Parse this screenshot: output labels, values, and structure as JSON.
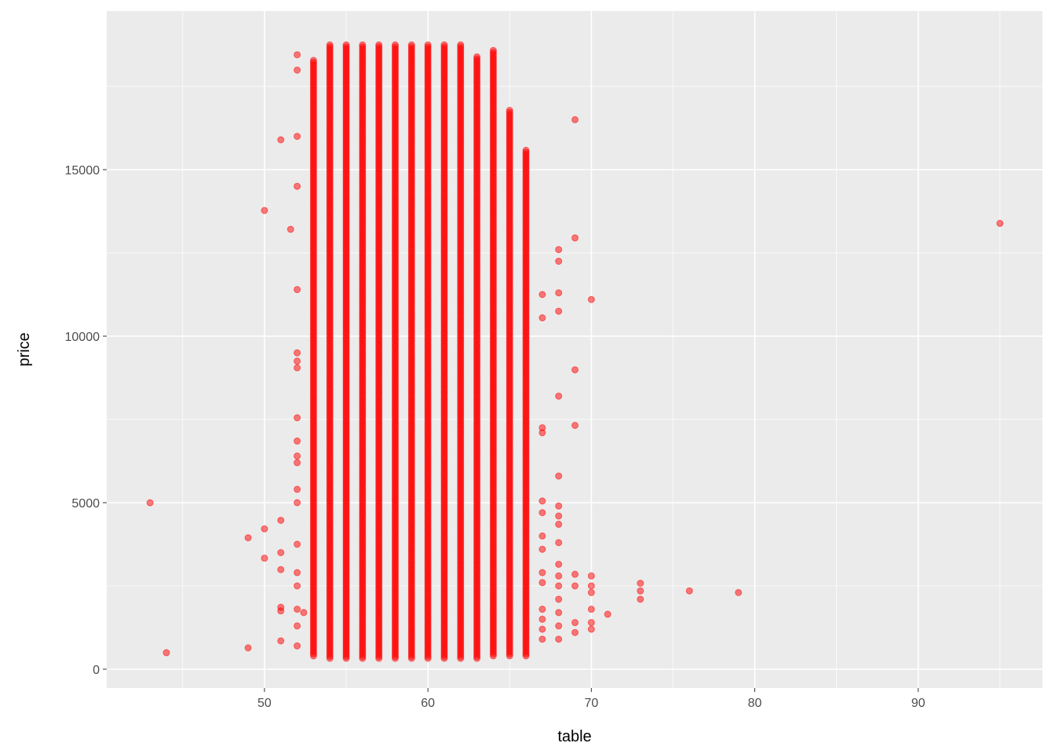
{
  "chart_data": {
    "type": "scatter",
    "title": "",
    "xlabel": "table",
    "ylabel": "price",
    "xlim": [
      40.35,
      97.6
    ],
    "ylim": [
      -566,
      19764
    ],
    "x_ticks": [
      50,
      60,
      70,
      80,
      90
    ],
    "x_tick_labels": [
      "50",
      "60",
      "70",
      "80",
      "90"
    ],
    "y_ticks": [
      0,
      5000,
      10000,
      15000
    ],
    "y_tick_labels": [
      "0",
      "5000",
      "10000",
      "15000"
    ],
    "grid": true,
    "background": "#EBEBEB",
    "point_color": "#FF0000",
    "point_alpha": 0.5,
    "dense_columns": [
      {
        "table": 53,
        "price_range": [
          400,
          18300
        ]
      },
      {
        "table": 54,
        "price_range": [
          326,
          18800
        ]
      },
      {
        "table": 55,
        "price_range": [
          326,
          18800
        ]
      },
      {
        "table": 56,
        "price_range": [
          326,
          18800
        ]
      },
      {
        "table": 57,
        "price_range": [
          326,
          18800
        ]
      },
      {
        "table": 58,
        "price_range": [
          326,
          18800
        ]
      },
      {
        "table": 59,
        "price_range": [
          326,
          18800
        ]
      },
      {
        "table": 60,
        "price_range": [
          326,
          18800
        ]
      },
      {
        "table": 61,
        "price_range": [
          326,
          18800
        ]
      },
      {
        "table": 62,
        "price_range": [
          326,
          18800
        ]
      },
      {
        "table": 63,
        "price_range": [
          326,
          18400
        ]
      },
      {
        "table": 64,
        "price_range": [
          400,
          18600
        ]
      },
      {
        "table": 65,
        "price_range": [
          400,
          16800
        ]
      },
      {
        "table": 66,
        "price_range": [
          400,
          15600
        ]
      }
    ],
    "points": [
      [
        43,
        4997
      ],
      [
        44,
        495
      ],
      [
        49,
        3945
      ],
      [
        49,
        640
      ],
      [
        50,
        13774
      ],
      [
        50,
        4214
      ],
      [
        50,
        3334
      ],
      [
        51,
        15896
      ],
      [
        51,
        4470
      ],
      [
        51,
        3500
      ],
      [
        51,
        2990
      ],
      [
        51,
        1860
      ],
      [
        51,
        1750
      ],
      [
        51,
        850
      ],
      [
        51.6,
        13208
      ],
      [
        52,
        18450
      ],
      [
        52,
        17990
      ],
      [
        52,
        16000
      ],
      [
        52,
        14500
      ],
      [
        52,
        11400
      ],
      [
        52,
        9500
      ],
      [
        52,
        9250
      ],
      [
        52,
        9050
      ],
      [
        52,
        7550
      ],
      [
        52,
        6850
      ],
      [
        52,
        6400
      ],
      [
        52,
        6200
      ],
      [
        52,
        5400
      ],
      [
        52,
        5000
      ],
      [
        52,
        3750
      ],
      [
        52,
        2900
      ],
      [
        52,
        2500
      ],
      [
        52,
        1800
      ],
      [
        52,
        1300
      ],
      [
        52,
        700
      ],
      [
        52.4,
        1700
      ],
      [
        67,
        11250
      ],
      [
        67,
        10550
      ],
      [
        67,
        7250
      ],
      [
        67,
        7100
      ],
      [
        67,
        5050
      ],
      [
        67,
        4700
      ],
      [
        67,
        4000
      ],
      [
        67,
        3600
      ],
      [
        67,
        2900
      ],
      [
        67,
        2600
      ],
      [
        67,
        1800
      ],
      [
        67,
        1500
      ],
      [
        67,
        1200
      ],
      [
        67,
        900
      ],
      [
        68,
        12600
      ],
      [
        68,
        12250
      ],
      [
        68,
        11300
      ],
      [
        68,
        10750
      ],
      [
        68,
        8200
      ],
      [
        68,
        5800
      ],
      [
        68,
        4900
      ],
      [
        68,
        4600
      ],
      [
        68,
        4350
      ],
      [
        68,
        3800
      ],
      [
        68,
        3150
      ],
      [
        68,
        2800
      ],
      [
        68,
        2500
      ],
      [
        68,
        2100
      ],
      [
        68,
        1700
      ],
      [
        68,
        1300
      ],
      [
        68,
        900
      ],
      [
        69,
        16500
      ],
      [
        69,
        12950
      ],
      [
        69,
        8990
      ],
      [
        69,
        7320
      ],
      [
        69,
        2850
      ],
      [
        69,
        2500
      ],
      [
        69,
        1400
      ],
      [
        69,
        1100
      ],
      [
        70,
        11100
      ],
      [
        70,
        2800
      ],
      [
        70,
        2500
      ],
      [
        70,
        2300
      ],
      [
        70,
        1800
      ],
      [
        70,
        1400
      ],
      [
        70,
        1200
      ],
      [
        71,
        1650
      ],
      [
        73,
        2580
      ],
      [
        73,
        2350
      ],
      [
        73,
        2100
      ],
      [
        76,
        2350
      ],
      [
        79,
        2300
      ],
      [
        95,
        13387
      ]
    ]
  }
}
